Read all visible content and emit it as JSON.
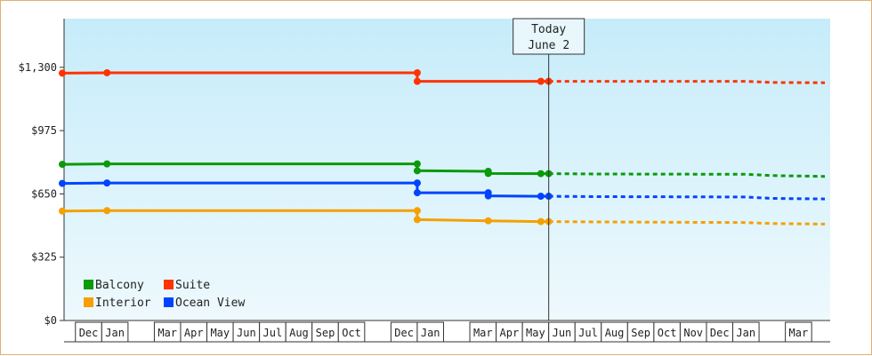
{
  "chart_data": {
    "type": "line",
    "y_ticks": [
      "$0",
      "$325",
      "$650",
      "$975",
      "$1,300"
    ],
    "y_tick_values": [
      0,
      325,
      650,
      975,
      1300
    ],
    "ylim": [
      0,
      1550
    ],
    "x_month_labels": [
      "Dec",
      "Jan",
      "Mar",
      "Apr",
      "May",
      "Jun",
      "Jul",
      "Aug",
      "Sep",
      "Oct",
      "Dec",
      "Jan",
      "Mar",
      "Apr",
      "May",
      "Jun",
      "Jul",
      "Aug",
      "Sep",
      "Oct",
      "Nov",
      "Dec",
      "Jan",
      "Mar"
    ],
    "today_marker": {
      "line1": "Today",
      "line2": "June 2"
    },
    "grid": false,
    "legend_position": "bottom-left",
    "series": [
      {
        "name": "Balcony",
        "color": "#0a9a0a",
        "actual": [
          [
            0,
            802
          ],
          [
            1.7,
            804
          ],
          [
            13.5,
            804
          ],
          [
            13.5,
            769
          ],
          [
            16.2,
            766
          ],
          [
            16.2,
            755
          ],
          [
            18.2,
            754
          ],
          [
            18.5,
            754
          ]
        ],
        "forecast": [
          [
            18.5,
            754
          ],
          [
            20.5,
            752
          ],
          [
            26,
            751
          ],
          [
            27,
            744
          ],
          [
            29,
            740
          ]
        ]
      },
      {
        "name": "Suite",
        "color": "#ff3300",
        "actual": [
          [
            0,
            1270
          ],
          [
            1.7,
            1272
          ],
          [
            13.5,
            1272
          ],
          [
            13.5,
            1228
          ],
          [
            18.2,
            1228
          ],
          [
            18.5,
            1228
          ]
        ],
        "forecast": [
          [
            18.5,
            1228
          ],
          [
            26,
            1228
          ],
          [
            27,
            1222
          ],
          [
            29,
            1221
          ]
        ]
      },
      {
        "name": "Interior",
        "color": "#f5a000",
        "actual": [
          [
            0,
            562
          ],
          [
            1.7,
            564
          ],
          [
            13.5,
            564
          ],
          [
            13.5,
            518
          ],
          [
            16.2,
            512
          ],
          [
            18.2,
            508
          ],
          [
            18.5,
            508
          ]
        ],
        "forecast": [
          [
            18.5,
            508
          ],
          [
            20.5,
            506
          ],
          [
            26,
            503
          ],
          [
            27,
            498
          ],
          [
            29,
            495
          ]
        ]
      },
      {
        "name": "Ocean View",
        "color": "#0044ff",
        "actual": [
          [
            0,
            704
          ],
          [
            1.7,
            706
          ],
          [
            13.5,
            706
          ],
          [
            13.5,
            656
          ],
          [
            16.2,
            656
          ],
          [
            16.2,
            640
          ],
          [
            18.2,
            638
          ],
          [
            18.5,
            638
          ]
        ],
        "forecast": [
          [
            18.5,
            638
          ],
          [
            20.5,
            636
          ],
          [
            26,
            634
          ],
          [
            27,
            627
          ],
          [
            29,
            624
          ]
        ]
      }
    ]
  },
  "legend": {
    "items": [
      {
        "label": "Balcony",
        "color": "#0a9a0a"
      },
      {
        "label": "Suite",
        "color": "#ff3300"
      },
      {
        "label": "Interior",
        "color": "#f5a000"
      },
      {
        "label": "Ocean View",
        "color": "#0044ff"
      }
    ]
  }
}
